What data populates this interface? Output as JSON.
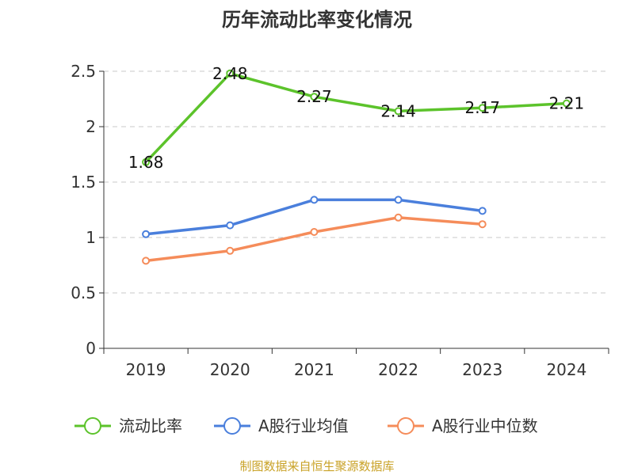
{
  "chart_data": {
    "type": "line",
    "title": "历年流动比率变化情况",
    "categories": [
      "2019",
      "2020",
      "2021",
      "2022",
      "2023",
      "2024"
    ],
    "ylim": [
      0,
      2.5
    ],
    "yticks": [
      "0",
      "0.5",
      "1",
      "1.5",
      "2",
      "2.5"
    ],
    "ytick_values": [
      0,
      0.5,
      1,
      1.5,
      2,
      2.5
    ],
    "grid": true,
    "legend_placement": "bottom",
    "series": [
      {
        "name": "流动比率",
        "color": "#5cc32b",
        "values": [
          1.68,
          2.48,
          2.27,
          2.14,
          2.17,
          2.21
        ],
        "labels": [
          "1.68",
          "2.48",
          "2.27",
          "2.14",
          "2.17",
          "2.21"
        ],
        "show_labels": true
      },
      {
        "name": "A股行业均值",
        "color": "#4a7fdc",
        "values": [
          1.03,
          1.11,
          1.34,
          1.34,
          1.24,
          null
        ],
        "show_labels": false
      },
      {
        "name": "A股行业中位数",
        "color": "#f58c5a",
        "values": [
          0.79,
          0.88,
          1.05,
          1.18,
          1.12,
          null
        ],
        "show_labels": false
      }
    ]
  },
  "footer": {
    "source": "制图数据来自恒生聚源数据库"
  }
}
